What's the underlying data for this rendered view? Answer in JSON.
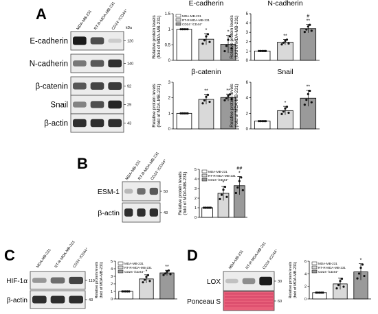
{
  "colors": {
    "bar_white": "#ffffff",
    "bar_light": "#d9d9d9",
    "bar_dark": "#9a9a9a",
    "ponceau": "#e8607a",
    "blot_bg": "#ececec",
    "band": "#1a1a1a"
  },
  "legend_labels": [
    "MDA-MB-231",
    "RT-R-MDA-MB-231",
    "CD24⁻/CD44⁺"
  ],
  "blot_lane_labels": [
    "MDA-MB-231",
    "RT-R-MDA-MB-231",
    "CD24⁻/CD44⁺"
  ],
  "kda_label": "kDa",
  "ylabel_lines": [
    "Relative protein levels",
    "(fold of MDA-MB-231)"
  ],
  "panels": {
    "A": {
      "label": "A",
      "blots": [
        {
          "name": "E-cadherin",
          "kda": "120",
          "intensity": [
            1.0,
            0.75,
            0.15
          ]
        },
        {
          "name": "N-cadherin",
          "kda": "140",
          "intensity": [
            0.55,
            0.7,
            0.9
          ]
        },
        {
          "name": "β-catenin",
          "kda": "92",
          "intensity": [
            0.7,
            0.8,
            0.85
          ]
        },
        {
          "name": "Snail",
          "kda": "29",
          "intensity": [
            0.5,
            0.75,
            0.95
          ]
        },
        {
          "name": "β-actin",
          "kda": "43",
          "intensity": [
            0.9,
            0.9,
            0.9
          ]
        }
      ]
    },
    "B": {
      "label": "B",
      "blots": [
        {
          "name": "ESM-1",
          "kda": "50",
          "intensity": [
            0.25,
            0.6,
            0.7
          ]
        },
        {
          "name": "β-actin",
          "kda": "43",
          "intensity": [
            0.9,
            0.9,
            0.9
          ]
        }
      ]
    },
    "C": {
      "label": "C",
      "blots": [
        {
          "name": "HIF-1α",
          "kda": "110",
          "intensity": [
            0.4,
            0.6,
            0.8
          ]
        },
        {
          "name": "β-actin",
          "kda": "43",
          "intensity": [
            0.9,
            0.9,
            0.9
          ]
        }
      ]
    },
    "D": {
      "label": "D",
      "blots": [
        {
          "name": "LOX",
          "kda": "30",
          "intensity": [
            0.2,
            0.45,
            1.0
          ]
        },
        {
          "name": "Ponceau S",
          "kda": "60",
          "intensity": [
            1,
            1,
            1
          ]
        }
      ]
    }
  },
  "chart_data": [
    {
      "id": "A-ecad",
      "type": "bar",
      "title": "E-cadherin",
      "categories": [
        "MDA-MB-231",
        "RT-R-MDA-MB-231",
        "CD24⁻/CD44⁺"
      ],
      "values": [
        1.0,
        0.68,
        0.52
      ],
      "errors": [
        0.0,
        0.18,
        0.28
      ],
      "annotations": [
        "",
        "*",
        "*"
      ],
      "ylim": [
        0,
        1.5
      ],
      "yticks": [
        0,
        0.5,
        1.0,
        1.5
      ],
      "show_legend": true
    },
    {
      "id": "A-ncad",
      "type": "bar",
      "title": "N-cadherin",
      "categories": [
        "MDA-MB-231",
        "RT-R-MDA-MB-231",
        "CD24⁻/CD44⁺"
      ],
      "values": [
        1.0,
        1.95,
        3.4
      ],
      "errors": [
        0.0,
        0.3,
        0.45
      ],
      "annotations": [
        "",
        "**",
        "#\n**"
      ],
      "ylim": [
        0,
        5
      ],
      "yticks": [
        0,
        1,
        2,
        3,
        4,
        5
      ],
      "show_legend": false
    },
    {
      "id": "A-bcat",
      "type": "bar",
      "title": "β-catenin",
      "categories": [
        "MDA-MB-231",
        "RT-R-MDA-MB-231",
        "CD24⁻/CD44⁺"
      ],
      "values": [
        1.0,
        1.9,
        2.02
      ],
      "errors": [
        0.0,
        0.32,
        0.22
      ],
      "annotations": [
        "",
        "**",
        "**"
      ],
      "ylim": [
        0,
        3
      ],
      "yticks": [
        0,
        1,
        2,
        3
      ],
      "show_legend": false
    },
    {
      "id": "A-snail",
      "type": "bar",
      "title": "Snail",
      "categories": [
        "MDA-MB-231",
        "RT-R-MDA-MB-231",
        "CD24⁻/CD44⁺"
      ],
      "values": [
        1.0,
        2.35,
        3.95
      ],
      "errors": [
        0.0,
        0.55,
        1.05
      ],
      "annotations": [
        "",
        "*",
        "**"
      ],
      "ylim": [
        0,
        6
      ],
      "yticks": [
        0,
        2,
        4,
        6
      ],
      "show_legend": false
    },
    {
      "id": "B-esm1",
      "type": "bar",
      "title": "",
      "categories": [
        "MDA-MB-231",
        "RT-R-MDA-MB-231",
        "CD24⁻/CD44⁺"
      ],
      "values": [
        1.0,
        2.5,
        3.3
      ],
      "errors": [
        0.0,
        0.75,
        0.95
      ],
      "annotations": [
        "",
        "*",
        "##\n*"
      ],
      "ylim": [
        0,
        5
      ],
      "yticks": [
        0,
        1,
        2,
        3,
        4,
        5
      ],
      "show_legend": true
    },
    {
      "id": "C-hif",
      "type": "bar",
      "title": "",
      "categories": [
        "MDA-MB-231",
        "RT-R-MDA-MB-231",
        "CD24⁻/CD44⁺"
      ],
      "values": [
        1.0,
        2.65,
        3.45
      ],
      "errors": [
        0.0,
        0.55,
        0.35
      ],
      "annotations": [
        "",
        "*",
        "**"
      ],
      "ylim": [
        0,
        5
      ],
      "yticks": [
        0,
        1,
        2,
        3,
        4,
        5
      ],
      "show_legend": true
    },
    {
      "id": "D-lox",
      "type": "bar",
      "title": "",
      "categories": [
        "MDA-MB-231",
        "RT-R-MDA-MB-231",
        "CD24⁻/CD44⁺"
      ],
      "values": [
        1.0,
        2.4,
        4.3
      ],
      "errors": [
        0.0,
        0.9,
        1.3
      ],
      "annotations": [
        "",
        "",
        "*"
      ],
      "ylim": [
        0,
        6
      ],
      "yticks": [
        0,
        2,
        4,
        6
      ],
      "show_legend": true
    }
  ]
}
